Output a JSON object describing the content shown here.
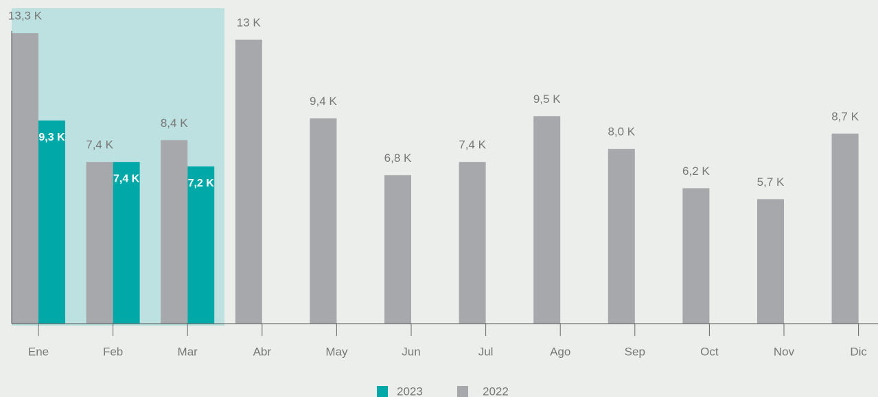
{
  "chart_data": {
    "type": "bar",
    "categories": [
      "Ene",
      "Feb",
      "Mar",
      "Abr",
      "May",
      "Jun",
      "Jul",
      "Ago",
      "Sep",
      "Oct",
      "Nov",
      "Dic"
    ],
    "series": [
      {
        "name": "2023",
        "color": "#00a9a8",
        "values": [
          9.3,
          7.4,
          7.2,
          null,
          null,
          null,
          null,
          null,
          null,
          null,
          null,
          null
        ],
        "value_labels": [
          "9,3 K",
          "7,4 K",
          "7,2 K",
          null,
          null,
          null,
          null,
          null,
          null,
          null,
          null,
          null
        ]
      },
      {
        "name": "2022",
        "color": "#a7a8ab",
        "values": [
          13.3,
          7.4,
          8.4,
          13,
          9.4,
          6.8,
          7.4,
          9.5,
          8.0,
          6.2,
          5.7,
          8.7
        ],
        "value_labels": [
          "13,3 K",
          "7,4 K",
          "8,4 K",
          "13 K",
          "9,4 K",
          "6,8 K",
          "7,4 K",
          "9,5 K",
          "8,0 K",
          "6,2 K",
          "5,7 K",
          "8,7 K"
        ]
      }
    ],
    "ylim": [
      0,
      14.5
    ],
    "legend": "bottom"
  }
}
